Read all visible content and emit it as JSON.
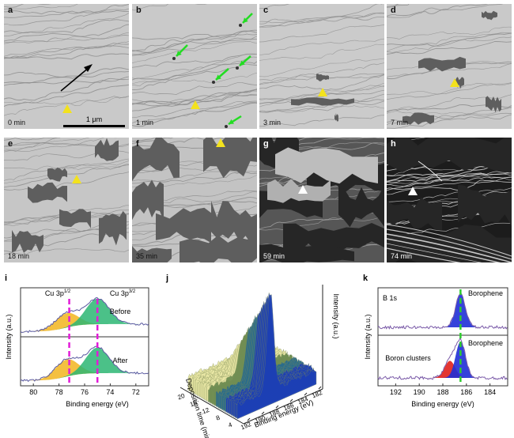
{
  "panels": [
    {
      "letter": "a",
      "time": "0 min"
    },
    {
      "letter": "b",
      "time": "1 min"
    },
    {
      "letter": "c",
      "time": "3 min"
    },
    {
      "letter": "d",
      "time": "7 min"
    },
    {
      "letter": "e",
      "time": "18 min"
    },
    {
      "letter": "f",
      "time": "35 min"
    },
    {
      "letter": "g",
      "time": "59 min"
    },
    {
      "letter": "h",
      "time": "74 min"
    }
  ],
  "scale_bar": "1 μm",
  "colors": {
    "yellow_marker": "#f3e21d",
    "white_marker": "#ffffff",
    "green_arrow": "#22dd22",
    "black_arrow": "#000000"
  },
  "chart_data": [
    {
      "type": "area",
      "panel": "i",
      "xlabel": "Binding energy (eV)",
      "ylabel": "Intensity (a.u.)",
      "xlim": [
        81,
        71
      ],
      "xticks": [
        80,
        78,
        76,
        74,
        72
      ],
      "peak_labels": [
        "Cu 3p",
        "Cu 3p"
      ],
      "peak_sup": [
        "1/2",
        "3/2"
      ],
      "peak_positions": [
        77.2,
        75.0
      ],
      "series": [
        {
          "name": "Before",
          "x": [
            81,
            80,
            79,
            78.5,
            78,
            77.5,
            77.2,
            77,
            76.5,
            76,
            75.5,
            75,
            74.5,
            74,
            73.5,
            73,
            72,
            71
          ],
          "y": [
            0.3,
            0.34,
            0.42,
            0.52,
            0.64,
            0.75,
            0.78,
            0.76,
            0.8,
            0.92,
            1.0,
            1.02,
            0.92,
            0.7,
            0.48,
            0.3,
            0.14,
            0.08
          ]
        },
        {
          "name": "After",
          "x": [
            81,
            80,
            79,
            78.5,
            78,
            77.5,
            77.2,
            77,
            76.5,
            76,
            75.5,
            75,
            74.5,
            74,
            73.5,
            73,
            72,
            71
          ],
          "y": [
            0.3,
            0.34,
            0.44,
            0.56,
            0.7,
            0.8,
            0.83,
            0.8,
            0.82,
            0.92,
            1.0,
            1.02,
            0.92,
            0.7,
            0.48,
            0.3,
            0.14,
            0.08
          ]
        }
      ]
    },
    {
      "type": "area",
      "panel": "j",
      "xlabel": "Binding energy (eV)",
      "ylabel": "Deposition time (min)",
      "zlabel": "Intensity (a.u.)",
      "xticks": [
        192,
        190,
        188,
        186,
        184,
        182
      ],
      "yticks": [
        20,
        16,
        12,
        8,
        4
      ],
      "peak_energy": 186.2
    },
    {
      "type": "area",
      "panel": "k",
      "xlabel": "Binding energy (eV)",
      "ylabel": "Intensity (a.u.)",
      "xlim": [
        193.5,
        182.5
      ],
      "xticks": [
        192,
        190,
        188,
        186,
        184
      ],
      "core_level": "B 1s",
      "series": [
        {
          "name": "Borophene",
          "peak_eV": 186.5,
          "panel": "top"
        },
        {
          "name": "Borophene",
          "peak_eV": 186.5,
          "panel": "bottom"
        },
        {
          "name": "Boron clusters",
          "peak_eV": 187.4,
          "panel": "bottom"
        }
      ],
      "marker_eV": 186.5
    }
  ]
}
